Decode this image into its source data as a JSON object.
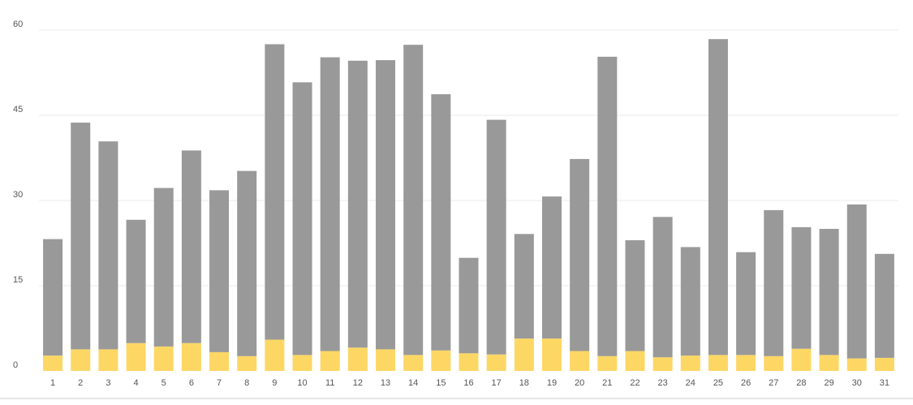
{
  "chart_data": {
    "type": "bar",
    "stacked": true,
    "categories": [
      "1",
      "2",
      "3",
      "4",
      "5",
      "6",
      "7",
      "8",
      "9",
      "10",
      "11",
      "12",
      "13",
      "14",
      "15",
      "16",
      "17",
      "18",
      "19",
      "20",
      "21",
      "22",
      "23",
      "24",
      "25",
      "26",
      "27",
      "28",
      "29",
      "30",
      "31"
    ],
    "series": [
      {
        "color": "#fdd764",
        "values": [
          2.7,
          3.8,
          3.8,
          4.9,
          4.3,
          4.9,
          3.3,
          2.6,
          5.5,
          2.8,
          3.5,
          4.1,
          3.8,
          2.8,
          3.6,
          3.1,
          2.9,
          5.7,
          5.7,
          3.5,
          2.6,
          3.5,
          2.4,
          2.7,
          2.8,
          2.8,
          2.6,
          3.9,
          2.8,
          2.2,
          2.3
        ]
      },
      {
        "color": "#999999",
        "values": [
          20.5,
          39.9,
          36.6,
          21.7,
          27.9,
          33.9,
          28.5,
          32.6,
          52.0,
          48.0,
          51.7,
          50.5,
          50.9,
          54.6,
          45.1,
          16.8,
          41.3,
          18.4,
          25.0,
          33.8,
          52.7,
          19.5,
          24.7,
          19.1,
          55.6,
          18.1,
          25.7,
          21.4,
          22.2,
          27.1,
          18.3
        ]
      }
    ],
    "yticks": [
      0,
      15,
      30,
      45,
      60
    ],
    "ylim": [
      0,
      60
    ],
    "grid": true,
    "legend": "none"
  }
}
